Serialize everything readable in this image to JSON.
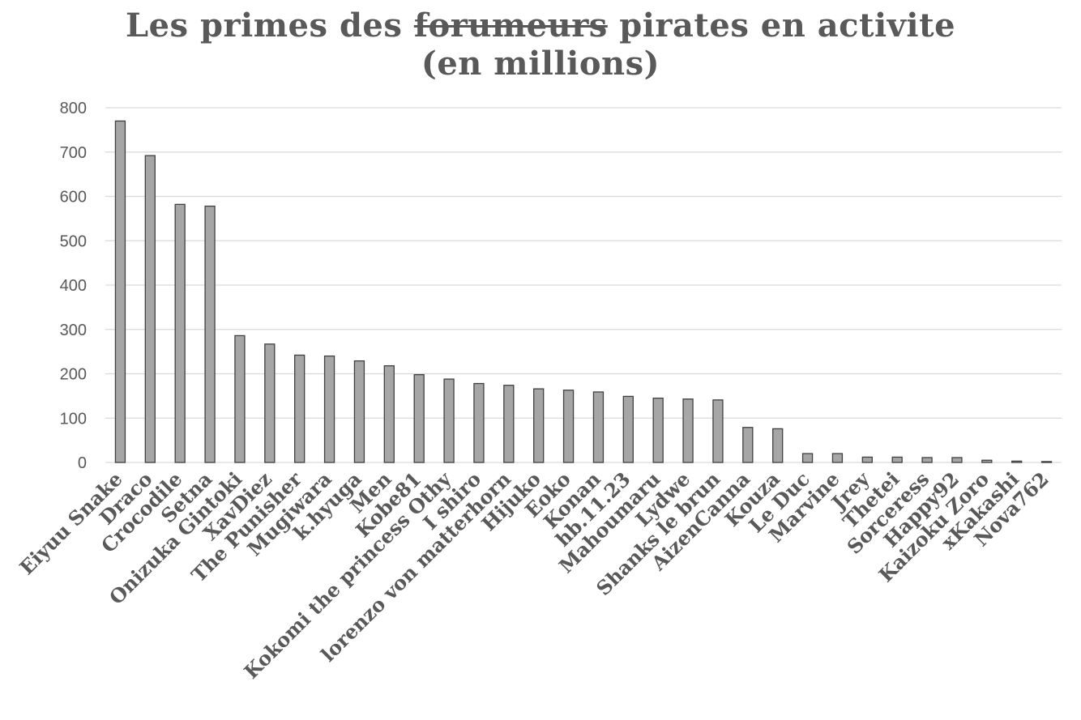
{
  "chart_data": {
    "type": "bar",
    "title": {
      "part1": "Les primes des ",
      "struck": "forumeurs",
      "part2": " pirates en activite",
      "line2": "(en millions)"
    },
    "xlabel": "",
    "ylabel": "",
    "ylim": [
      0,
      800
    ],
    "yticks": [
      0,
      100,
      200,
      300,
      400,
      500,
      600,
      700,
      800
    ],
    "grid": true,
    "legend": "none",
    "colors": {
      "bar_fill": "#a6a6a6",
      "bar_stroke": "#404040",
      "grid": "#d9d9d9",
      "text": "#595959"
    },
    "categories": [
      "Eiyuu Snake",
      "Draco",
      "Crocodile",
      "Setna",
      "Onizuka Gintoki",
      "XavDiez",
      "The Punisher",
      "Mugiwara",
      "k.hyuga",
      "Men",
      "Kobe81",
      "Kokomi the princess Othy",
      "I shiro",
      "lorenzo von matterhorn",
      "Hijuko",
      "Eoko",
      "Konan",
      "hb.11.23",
      "Mahoumaru",
      "Lydwe",
      "Shanks le brun",
      "AizenCanna",
      "Kouza",
      "Le Duc",
      "Marvine",
      "Jrey",
      "Thetei",
      "Sorceress",
      "Happy92",
      "Kaizoku Zoro",
      "xKakashi",
      "Nova762"
    ],
    "values": [
      770,
      692,
      582,
      578,
      286,
      267,
      242,
      240,
      229,
      218,
      198,
      188,
      178,
      174,
      166,
      163,
      159,
      149,
      145,
      143,
      141,
      79,
      76,
      20,
      20,
      12,
      12,
      11,
      11,
      5,
      3,
      2
    ]
  }
}
